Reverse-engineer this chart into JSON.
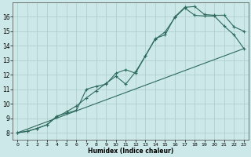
{
  "title": "",
  "xlabel": "Humidex (Indice chaleur)",
  "xlim": [
    -0.5,
    23.5
  ],
  "ylim": [
    7.5,
    17.0
  ],
  "yticks": [
    8,
    9,
    10,
    11,
    12,
    13,
    14,
    15,
    16
  ],
  "xticks": [
    0,
    1,
    2,
    3,
    4,
    5,
    6,
    7,
    8,
    9,
    10,
    11,
    12,
    13,
    14,
    15,
    16,
    17,
    18,
    19,
    20,
    21,
    22,
    23
  ],
  "bg_color": "#cce8e8",
  "grid_color": "#aacccc",
  "line_color": "#2e6b5e",
  "line1_x": [
    0,
    1,
    2,
    3,
    4,
    5,
    6,
    7,
    8,
    9,
    10,
    11,
    12,
    13,
    14,
    15,
    16,
    17,
    18,
    19,
    20,
    21,
    22,
    23
  ],
  "line1_y": [
    8.0,
    8.1,
    8.3,
    8.55,
    9.1,
    9.45,
    9.85,
    10.4,
    10.9,
    11.4,
    11.9,
    11.35,
    12.2,
    13.3,
    14.5,
    14.75,
    16.0,
    16.65,
    16.7,
    16.15,
    16.1,
    16.1,
    15.3,
    15.0
  ],
  "line2_x": [
    0,
    1,
    2,
    3,
    4,
    5,
    6,
    7,
    8,
    9,
    10,
    11,
    12,
    13,
    14,
    15,
    16,
    17,
    18,
    19,
    20,
    21,
    22,
    23
  ],
  "line2_y": [
    8.0,
    8.1,
    8.3,
    8.55,
    9.15,
    9.35,
    9.55,
    11.0,
    11.2,
    11.35,
    12.1,
    12.35,
    12.1,
    13.3,
    14.45,
    14.95,
    15.95,
    16.6,
    16.1,
    16.05,
    16.05,
    15.35,
    14.75,
    13.8
  ],
  "line3_x": [
    0,
    23
  ],
  "line3_y": [
    8.0,
    13.8
  ]
}
